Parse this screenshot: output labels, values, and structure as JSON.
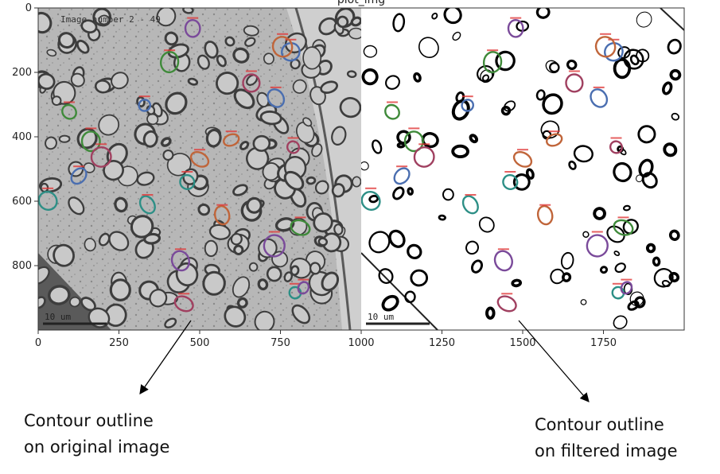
{
  "figure": {
    "title": "plot_img",
    "x_axis": {
      "ticks": [
        "0",
        "250",
        "500",
        "750",
        "1000",
        "1250",
        "1500",
        "1750"
      ]
    },
    "y_axis": {
      "ticks": [
        "0",
        "200",
        "400",
        "600",
        "800"
      ]
    },
    "left_panel": {
      "overlay_text": "Image number 2 - 49",
      "scale_bar_label": "10 um"
    },
    "right_panel": {
      "scale_bar_label": "10 um"
    },
    "contour_colors": [
      "#7a4a9a",
      "#c0653a",
      "#3f8a3a",
      "#4a6eb0",
      "#2d8f86",
      "#a04060"
    ],
    "label_color": "#e03a3a"
  },
  "captions": {
    "left": {
      "line1": "Contour outline",
      "line2": "on original image"
    },
    "right": {
      "line1": "Contour outline",
      "line2": "on filtered image"
    }
  }
}
